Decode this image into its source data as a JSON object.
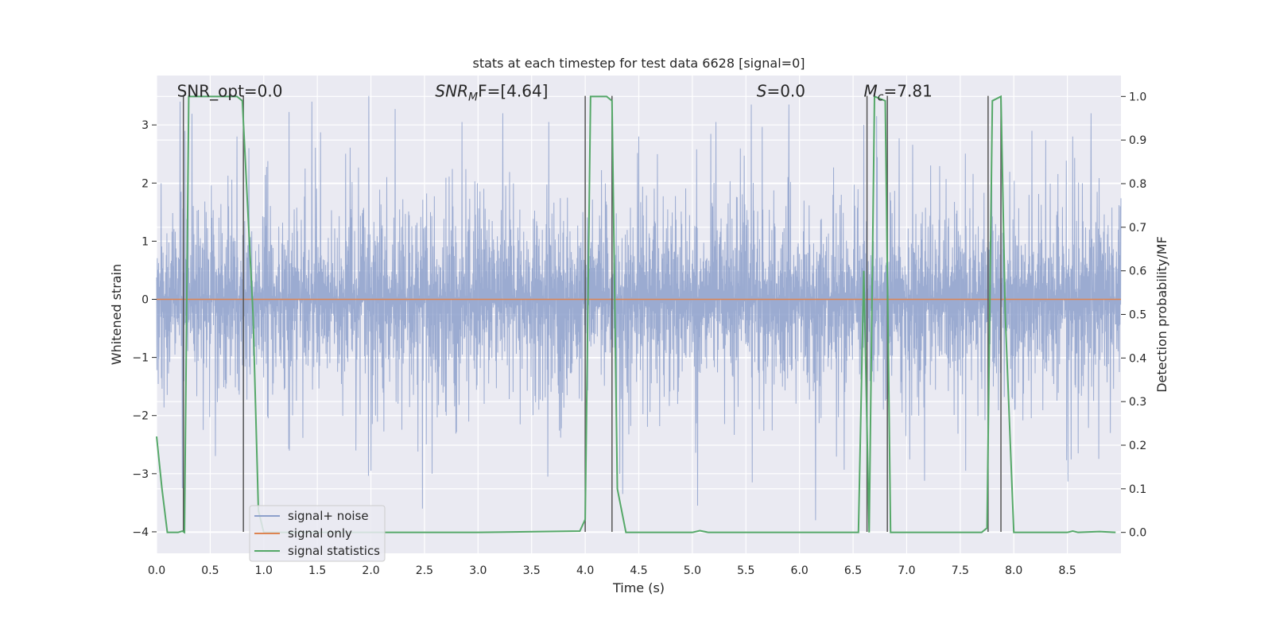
{
  "chart_data": {
    "type": "line",
    "title": "stats at each timestep for test data 6628 [signal=0]",
    "xlabel": "Time (s)",
    "ylabel": "Whitened strain",
    "y2label": "Detection probability/MF",
    "xlim": [
      0.0,
      9.0
    ],
    "ylim": [
      -4.37,
      3.85
    ],
    "y2lim": [
      -0.048,
      1.048
    ],
    "x_ticks": [
      0.0,
      0.5,
      1.0,
      1.5,
      2.0,
      2.5,
      3.0,
      3.5,
      4.0,
      4.5,
      5.0,
      5.5,
      6.0,
      6.5,
      7.0,
      7.5,
      8.0,
      8.5
    ],
    "x_tick_labels": [
      "0.0",
      "0.5",
      "1.0",
      "1.5",
      "2.0",
      "2.5",
      "3.0",
      "3.5",
      "4.0",
      "4.5",
      "5.0",
      "5.5",
      "6.0",
      "6.5",
      "7.0",
      "7.5",
      "8.0",
      "8.5"
    ],
    "y_ticks": [
      3,
      2,
      1,
      0,
      -1,
      -2,
      -3,
      -4
    ],
    "y_tick_labels": [
      "3",
      "2",
      "1",
      "0",
      "−1",
      "−2",
      "−3",
      "−4"
    ],
    "y2_ticks": [
      1.0,
      0.9,
      0.8,
      0.7,
      0.6,
      0.5,
      0.4,
      0.3,
      0.2,
      0.1,
      0.0
    ],
    "y2_tick_labels": [
      "1.0",
      "0.9",
      "0.8",
      "0.7",
      "0.6",
      "0.5",
      "0.4",
      "0.3",
      "0.2",
      "0.1",
      "0.0"
    ],
    "grid": true,
    "legend_position": "lower-left",
    "series": [
      {
        "name": "signal+ noise",
        "color": "#8da0cb",
        "description_values": "dense noise approximately within [-2.5, 2.5] with spikes to about ±3.5",
        "envelope": {
          "typical_amplitude": 1.25,
          "peak_amplitude": 3.5
        },
        "spikes": [
          {
            "x": 0.22,
            "y": 3.4
          },
          {
            "x": 0.24,
            "y": -3.25
          },
          {
            "x": 0.75,
            "y": 2.8
          },
          {
            "x": 0.81,
            "y": -2.85
          },
          {
            "x": 0.86,
            "y": 2.6
          },
          {
            "x": 1.45,
            "y": 3.4
          },
          {
            "x": 1.86,
            "y": -2.6
          },
          {
            "x": 1.98,
            "y": 3.5
          },
          {
            "x": 2.0,
            "y": -2.95
          },
          {
            "x": 2.48,
            "y": -3.6
          },
          {
            "x": 2.57,
            "y": -3.0
          },
          {
            "x": 2.85,
            "y": 3.05
          },
          {
            "x": 3.23,
            "y": 3.2
          },
          {
            "x": 3.65,
            "y": -3.05
          },
          {
            "x": 3.66,
            "y": 3.05
          },
          {
            "x": 4.35,
            "y": -3.35
          },
          {
            "x": 4.5,
            "y": 2.8
          },
          {
            "x": 5.05,
            "y": -3.55
          },
          {
            "x": 5.22,
            "y": 3.05
          },
          {
            "x": 5.55,
            "y": 3.35
          },
          {
            "x": 5.56,
            "y": -3.15
          },
          {
            "x": 5.9,
            "y": 3.35
          },
          {
            "x": 6.15,
            "y": -3.85
          },
          {
            "x": 6.6,
            "y": 3.0
          },
          {
            "x": 6.72,
            "y": 3.15
          },
          {
            "x": 7.55,
            "y": -2.95
          },
          {
            "x": 8.17,
            "y": 2.9
          },
          {
            "x": 8.55,
            "y": 2.8
          },
          {
            "x": 8.6,
            "y": -2.65
          },
          {
            "x": 8.72,
            "y": 3.2
          },
          {
            "x": 8.9,
            "y": -2.3
          }
        ]
      },
      {
        "name": "signal only",
        "color": "#dd8452",
        "x": [
          0.0,
          9.0
        ],
        "y": [
          0.0,
          0.0
        ]
      },
      {
        "name": "signal statistics",
        "color": "#55a868",
        "axis": "right",
        "x": [
          0.0,
          0.05,
          0.1,
          0.2,
          0.24,
          0.26,
          0.3,
          0.5,
          0.75,
          0.8,
          0.9,
          0.95,
          1.0,
          3.0,
          3.95,
          4.0,
          4.05,
          4.2,
          4.25,
          4.3,
          4.38,
          5.0,
          5.07,
          5.15,
          6.55,
          6.6,
          6.65,
          6.7,
          6.8,
          6.85,
          7.0,
          7.7,
          7.75,
          7.8,
          7.88,
          7.92,
          8.0,
          8.5,
          8.55,
          8.6,
          8.8,
          8.95
        ],
        "y": [
          0.22,
          0.1,
          0.0,
          0.0,
          0.003,
          0.0,
          1.0,
          1.0,
          1.0,
          0.99,
          0.5,
          0.05,
          0.0,
          0.0,
          0.003,
          0.03,
          1.0,
          1.0,
          0.99,
          0.1,
          0.0,
          0.0,
          0.004,
          0.0,
          0.0,
          0.6,
          0.0,
          1.0,
          0.99,
          0.0,
          0.0,
          0.0,
          0.01,
          0.99,
          1.0,
          0.5,
          0.0,
          0.0,
          0.003,
          0.0,
          0.002,
          0.0
        ]
      }
    ],
    "vertical_lines": [
      0.25,
      0.81,
      4.0,
      4.25,
      6.63,
      6.82,
      7.76,
      7.88
    ],
    "vertical_line_range": [
      -4.0,
      3.5
    ],
    "annotations": [
      {
        "text": "SNR_opt=0.0",
        "x": 0.19,
        "y": 3.58,
        "italic": false
      },
      {
        "text": "SNR",
        "sub": "M",
        "rest": "F=[4.64]",
        "x": 2.6,
        "y": 3.58,
        "italic": true
      },
      {
        "text": "S",
        "sub": "",
        "rest": "=0.0",
        "x": 5.6,
        "y": 3.58,
        "italic": true
      },
      {
        "text": "M",
        "sub": "c",
        "rest": "=7.81",
        "x": 6.6,
        "y": 3.58,
        "italic": true
      }
    ]
  }
}
